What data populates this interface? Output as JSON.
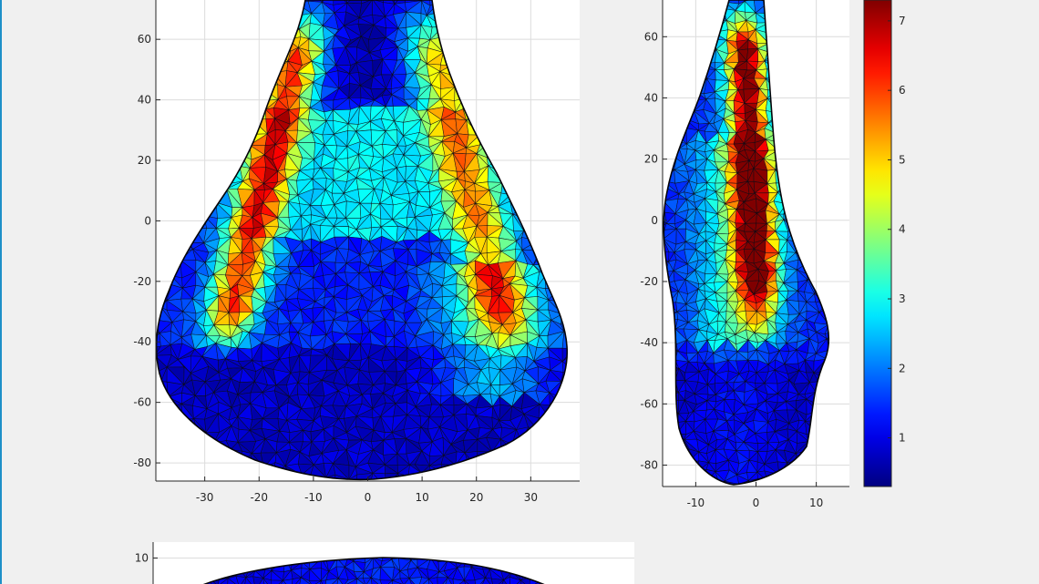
{
  "figure": {
    "accent": "#1e90c8",
    "background": "#f0f0f0"
  },
  "chart_data": [
    {
      "type": "heatmap",
      "title": "",
      "xlabel": "",
      "ylabel": "",
      "view": "front",
      "x_ticks": [
        -30,
        -20,
        -10,
        0,
        10,
        20,
        30
      ],
      "y_ticks": [
        60,
        40,
        20,
        0,
        -20,
        -40,
        -60,
        -80
      ],
      "xlim": [
        -39,
        39
      ],
      "ylim": [
        -86,
        73
      ],
      "grid": true,
      "colormap": "jet",
      "surface_value_range": [
        0.3,
        7.3
      ]
    },
    {
      "type": "heatmap",
      "title": "",
      "xlabel": "",
      "ylabel": "",
      "view": "side",
      "x_ticks": [
        -10,
        0,
        10
      ],
      "y_ticks": [
        60,
        40,
        20,
        0,
        -20,
        -40,
        -60,
        -80
      ],
      "xlim": [
        -15.5,
        15.5
      ],
      "ylim": [
        -87,
        72
      ],
      "grid": true,
      "colormap": "jet",
      "surface_value_range": [
        0.3,
        7.3
      ]
    },
    {
      "type": "heatmap",
      "title": "",
      "xlabel": "",
      "ylabel": "",
      "view": "top",
      "y_ticks": [
        10
      ],
      "xlim": [
        -39,
        39
      ],
      "ylim": [
        -2,
        14
      ],
      "grid": true,
      "colormap": "jet"
    }
  ],
  "colorbar": {
    "ticks": [
      1,
      2,
      3,
      4,
      5,
      6,
      7
    ],
    "range": [
      0.3,
      7.3
    ],
    "colormap": "jet"
  }
}
